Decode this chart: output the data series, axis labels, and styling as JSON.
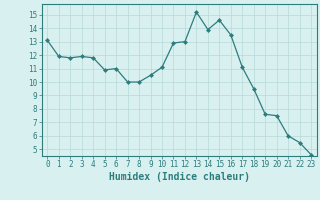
{
  "x": [
    0,
    1,
    2,
    3,
    4,
    5,
    6,
    7,
    8,
    9,
    10,
    11,
    12,
    13,
    14,
    15,
    16,
    17,
    18,
    19,
    20,
    21,
    22,
    23
  ],
  "y": [
    13.1,
    11.9,
    11.8,
    11.9,
    11.8,
    10.9,
    11.0,
    10.0,
    10.0,
    10.5,
    11.1,
    12.9,
    13.0,
    15.2,
    13.9,
    14.6,
    13.5,
    11.1,
    9.5,
    7.6,
    7.5,
    6.0,
    5.5,
    4.6
  ],
  "line_color": "#2e7d7d",
  "marker": "D",
  "marker_size": 2.0,
  "bg_color": "#d8f0f0",
  "grid_color": "#b8d8d8",
  "xlabel": "Humidex (Indice chaleur)",
  "xlim": [
    -0.5,
    23.5
  ],
  "ylim": [
    4.5,
    15.8
  ],
  "yticks": [
    5,
    6,
    7,
    8,
    9,
    10,
    11,
    12,
    13,
    14,
    15
  ],
  "xticks": [
    0,
    1,
    2,
    3,
    4,
    5,
    6,
    7,
    8,
    9,
    10,
    11,
    12,
    13,
    14,
    15,
    16,
    17,
    18,
    19,
    20,
    21,
    22,
    23
  ],
  "tick_label_fontsize": 5.5,
  "xlabel_fontsize": 7.0,
  "tick_color": "#2e7d7d",
  "axis_color": "#2e7d7d",
  "line_width": 0.9,
  "grid_linewidth": 0.5
}
